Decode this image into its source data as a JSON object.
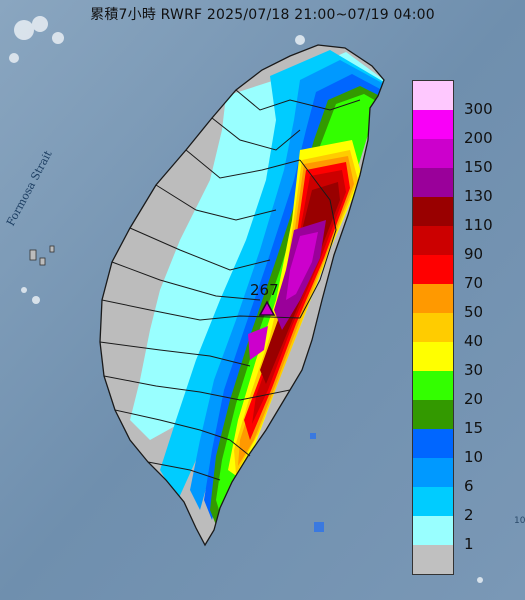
{
  "title": "累積7小時 RWRF 2025/07/18 21:00~07/19 04:00",
  "strait_label": "Formosa Strait",
  "max_marker": {
    "value": "267",
    "icon": "triangle-max-icon"
  },
  "corner_text": "10",
  "legend": {
    "labels": [
      "300",
      "200",
      "150",
      "130",
      "110",
      "90",
      "70",
      "50",
      "40",
      "30",
      "20",
      "15",
      "10",
      "6",
      "2",
      "1"
    ],
    "colors": [
      "#fec8fe",
      "#f900f8",
      "#cc00cc",
      "#9a009a",
      "#990000",
      "#cc0000",
      "#ff0000",
      "#ff9900",
      "#ffcc00",
      "#ffff00",
      "#33ff00",
      "#339900",
      "#0066ff",
      "#0099ff",
      "#00ccff",
      "#99ffff",
      "#c0c0c0"
    ]
  },
  "colors": {
    "sea": "#6f8fae",
    "land_gray": "#bcbcbc",
    "border": "#1a1a1a"
  }
}
